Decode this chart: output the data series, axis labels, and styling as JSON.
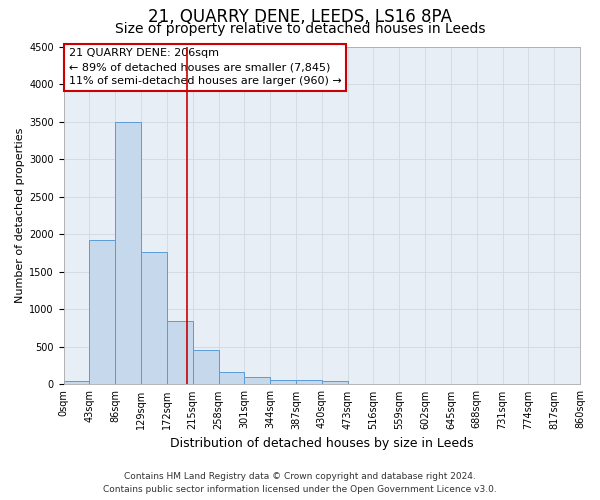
{
  "title": "21, QUARRY DENE, LEEDS, LS16 8PA",
  "subtitle": "Size of property relative to detached houses in Leeds",
  "xlabel": "Distribution of detached houses by size in Leeds",
  "ylabel": "Number of detached properties",
  "bar_values": [
    50,
    1920,
    3500,
    1770,
    850,
    460,
    160,
    95,
    60,
    55,
    40,
    0,
    0,
    0,
    0,
    0,
    0,
    0,
    0,
    0
  ],
  "bar_color": "#c5d8ec",
  "bar_edge_color": "#5b9bd5",
  "tick_labels": [
    "0sqm",
    "43sqm",
    "86sqm",
    "129sqm",
    "172sqm",
    "215sqm",
    "258sqm",
    "301sqm",
    "344sqm",
    "387sqm",
    "430sqm",
    "473sqm",
    "516sqm",
    "559sqm",
    "602sqm",
    "645sqm",
    "688sqm",
    "731sqm",
    "774sqm",
    "817sqm",
    "860sqm"
  ],
  "ylim": [
    0,
    4500
  ],
  "yticks": [
    0,
    500,
    1000,
    1500,
    2000,
    2500,
    3000,
    3500,
    4000,
    4500
  ],
  "vline_x": 4.79,
  "vline_color": "#cc0000",
  "annotation_line1": "21 QUARRY DENE: 206sqm",
  "annotation_line2": "← 89% of detached houses are smaller (7,845)",
  "annotation_line3": "11% of semi-detached houses are larger (960) →",
  "annotation_box_color": "#ffffff",
  "annotation_box_edge": "#cc0000",
  "footer_line1": "Contains HM Land Registry data © Crown copyright and database right 2024.",
  "footer_line2": "Contains public sector information licensed under the Open Government Licence v3.0.",
  "background_color": "#ffffff",
  "plot_bg_color": "#e8eef5",
  "grid_color": "#d0d8e0",
  "title_fontsize": 12,
  "subtitle_fontsize": 10,
  "ylabel_fontsize": 8,
  "xlabel_fontsize": 9,
  "annotation_fontsize": 8,
  "tick_fontsize": 7,
  "footer_fontsize": 6.5
}
